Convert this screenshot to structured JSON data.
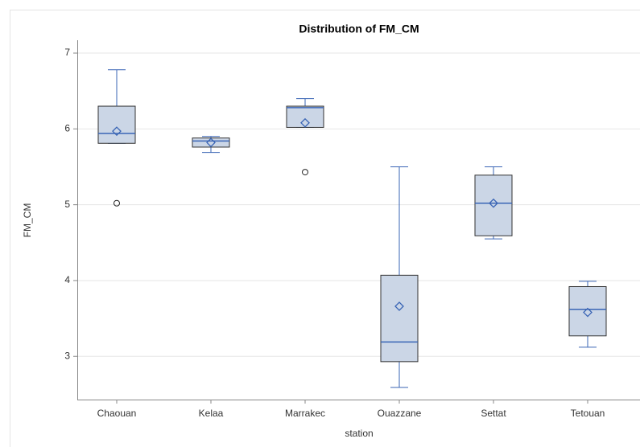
{
  "chart_data": {
    "type": "box",
    "title": "Distribution of FM_CM",
    "x_label": "station",
    "y_label": "FM_CM",
    "categories": [
      "Chaouan",
      "Kelaa",
      "Marrakec",
      "Ouazzane",
      "Settat",
      "Tetouan"
    ],
    "boxes": [
      {
        "min": 5.81,
        "q1": 5.81,
        "median": 5.94,
        "q3": 6.3,
        "max": 6.78,
        "mean": 5.97,
        "outliers": [
          5.02
        ]
      },
      {
        "min": 5.69,
        "q1": 5.76,
        "median": 5.84,
        "q3": 5.88,
        "max": 5.9,
        "mean": 5.82,
        "outliers": []
      },
      {
        "min": 6.02,
        "q1": 6.02,
        "median": 6.28,
        "q3": 6.3,
        "max": 6.4,
        "mean": 6.08,
        "outliers": [
          5.43
        ]
      },
      {
        "min": 2.59,
        "q1": 2.93,
        "median": 3.19,
        "q3": 4.07,
        "max": 5.5,
        "mean": 3.66,
        "outliers": []
      },
      {
        "min": 4.55,
        "q1": 4.59,
        "median": 5.02,
        "q3": 5.39,
        "max": 5.5,
        "mean": 5.02,
        "outliers": []
      },
      {
        "min": 3.12,
        "q1": 3.27,
        "median": 3.62,
        "q3": 3.92,
        "max": 3.99,
        "mean": 3.58,
        "outliers": []
      }
    ],
    "box_color": "#cbd6e6",
    "line_color": "#3a65b5",
    "edge_color": "#333333",
    "ylim": [
      2.43,
      7.17
    ],
    "yticks": [
      3,
      4,
      5,
      6,
      7
    ],
    "grid": true
  }
}
